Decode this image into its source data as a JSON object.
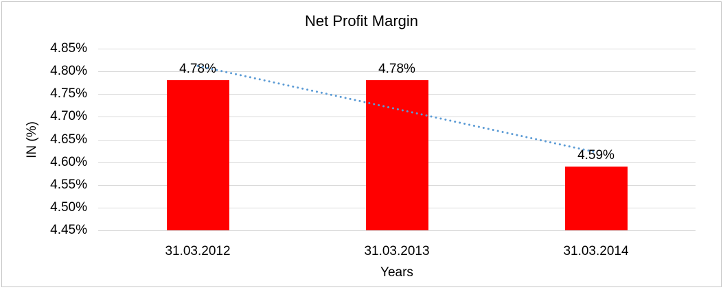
{
  "chart_data": {
    "type": "bar",
    "title": "Net Profit Margin",
    "xlabel": "Years",
    "ylabel": "IN (%)",
    "categories": [
      "31.03.2012",
      "31.03.2013",
      "31.03.2014"
    ],
    "values": [
      4.78,
      4.78,
      4.59
    ],
    "data_labels": [
      "4.78%",
      "4.78%",
      "4.59%"
    ],
    "yticks": [
      {
        "label": "4.85%",
        "value": 4.85
      },
      {
        "label": "4.80%",
        "value": 4.8
      },
      {
        "label": "4.75%",
        "value": 4.75
      },
      {
        "label": "4.70%",
        "value": 4.7
      },
      {
        "label": "4.65%",
        "value": 4.65
      },
      {
        "label": "4.60%",
        "value": 4.6
      },
      {
        "label": "4.55%",
        "value": 4.55
      },
      {
        "label": "4.50%",
        "value": 4.5
      },
      {
        "label": "4.45%",
        "value": 4.45
      }
    ],
    "ylim": [
      4.45,
      4.85
    ],
    "grid": true,
    "legend": "none",
    "colors": {
      "bar": "#FF0000",
      "trendline": "#5B9BD5",
      "gridline": "#D9D9D9",
      "text": "#000000",
      "chart_border": "#C3C3C3"
    },
    "trendline": {
      "type": "linear",
      "style": "dotted",
      "color": "#5B9BD5",
      "start_value": 4.812,
      "end_value": 4.622
    }
  }
}
